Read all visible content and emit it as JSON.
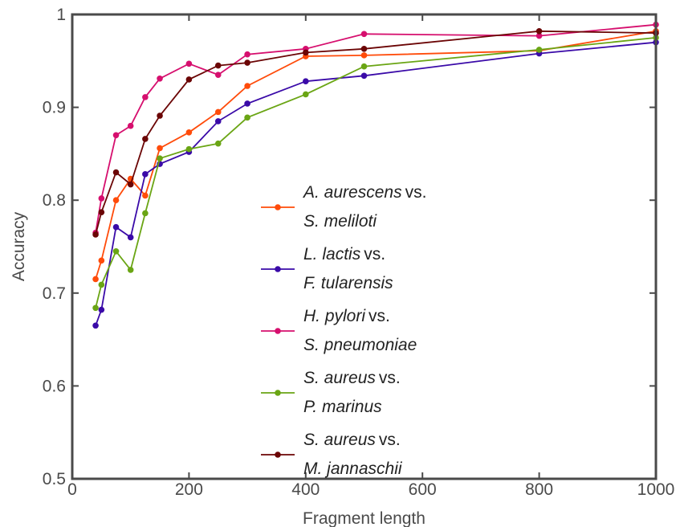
{
  "chart_data": {
    "type": "line",
    "title": "",
    "xlabel": "Fragment length",
    "ylabel": "Accuracy",
    "xlim": [
      0,
      1000
    ],
    "ylim": [
      0.5,
      1
    ],
    "xticks": [
      0,
      200,
      400,
      600,
      800,
      1000
    ],
    "yticks": [
      0.5,
      0.6,
      0.7,
      0.8,
      0.9,
      1
    ],
    "xtick_labels": [
      "0",
      "200",
      "400",
      "600",
      "800",
      "1000"
    ],
    "ytick_labels": [
      "0.5",
      "0.6",
      "0.7",
      "0.8",
      "0.9",
      "1"
    ],
    "grid": false,
    "legend_position": "center",
    "x": [
      40,
      50,
      75,
      100,
      125,
      150,
      200,
      250,
      300,
      400,
      500,
      800,
      1000
    ],
    "series": [
      {
        "name": "A. aurescens vs. S. meliloti",
        "species1": "A. aurescens",
        "species2": "S. meliloti",
        "color": "#ff4b0a",
        "values": [
          0.715,
          0.735,
          0.8,
          0.823,
          0.805,
          0.856,
          0.873,
          0.895,
          0.923,
          0.955,
          0.956,
          0.961,
          0.982
        ]
      },
      {
        "name": "L. lactis vs. F. tularensis",
        "species1": "L. lactis",
        "species2": "F. tularensis",
        "color": "#3a0aa8",
        "values": [
          0.665,
          0.682,
          0.771,
          0.76,
          0.828,
          0.839,
          0.852,
          0.885,
          0.904,
          0.928,
          0.934,
          0.958,
          0.97
        ]
      },
      {
        "name": "H. pylori vs. S. pneumoniae",
        "species1": "H. pylori",
        "species2": "S. pneumoniae",
        "color": "#d60f6e",
        "values": [
          0.765,
          0.802,
          0.87,
          0.88,
          0.911,
          0.931,
          0.947,
          0.935,
          0.957,
          0.963,
          0.979,
          0.977,
          0.989
        ]
      },
      {
        "name": "S. aureus vs. P. marinus",
        "species1": "S. aureus",
        "species2": "P. marinus",
        "color": "#6aa514",
        "values": [
          0.684,
          0.709,
          0.745,
          0.725,
          0.786,
          0.845,
          0.855,
          0.861,
          0.889,
          0.914,
          0.944,
          0.962,
          0.975
        ]
      },
      {
        "name": "S. aureus vs. M. jannaschii",
        "species1": "S. aureus",
        "species2": "M. jannaschii",
        "color": "#6b0505",
        "values": [
          0.763,
          0.787,
          0.83,
          0.817,
          0.866,
          0.891,
          0.93,
          0.945,
          0.948,
          0.959,
          0.963,
          0.982,
          0.98
        ]
      }
    ]
  },
  "legend": {
    "vs_text": "vs."
  }
}
